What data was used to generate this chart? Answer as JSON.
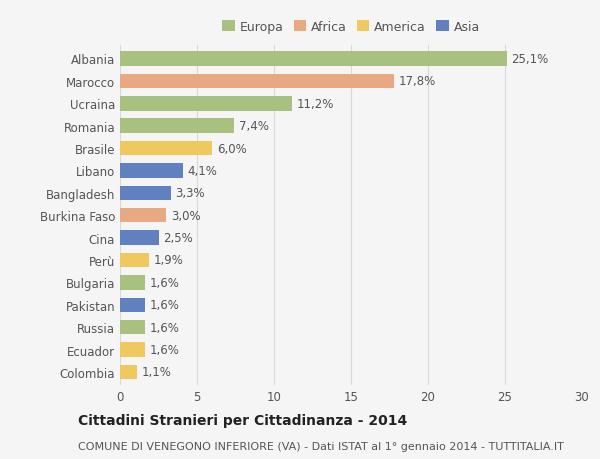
{
  "countries": [
    "Albania",
    "Marocco",
    "Ucraina",
    "Romania",
    "Brasile",
    "Libano",
    "Bangladesh",
    "Burkina Faso",
    "Cina",
    "Perù",
    "Bulgaria",
    "Pakistan",
    "Russia",
    "Ecuador",
    "Colombia"
  ],
  "values": [
    25.1,
    17.8,
    11.2,
    7.4,
    6.0,
    4.1,
    3.3,
    3.0,
    2.5,
    1.9,
    1.6,
    1.6,
    1.6,
    1.6,
    1.1
  ],
  "continents": [
    "Europa",
    "Africa",
    "Europa",
    "Europa",
    "America",
    "Asia",
    "Asia",
    "Africa",
    "Asia",
    "America",
    "Europa",
    "Asia",
    "Europa",
    "America",
    "America"
  ],
  "continent_colors": {
    "Europa": "#a8c080",
    "Africa": "#e8a882",
    "America": "#f0c860",
    "Asia": "#6080c0"
  },
  "legend_order": [
    "Europa",
    "Africa",
    "America",
    "Asia"
  ],
  "xlim": [
    0,
    30
  ],
  "xticks": [
    0,
    5,
    10,
    15,
    20,
    25,
    30
  ],
  "title": "Cittadini Stranieri per Cittadinanza - 2014",
  "subtitle": "COMUNE DI VENEGONO INFERIORE (VA) - Dati ISTAT al 1° gennaio 2014 - TUTTITALIA.IT",
  "background_color": "#f5f5f5",
  "grid_color": "#d8d8d8",
  "bar_height": 0.65,
  "title_fontsize": 10,
  "subtitle_fontsize": 8,
  "label_fontsize": 8.5,
  "tick_fontsize": 8.5,
  "legend_fontsize": 9
}
